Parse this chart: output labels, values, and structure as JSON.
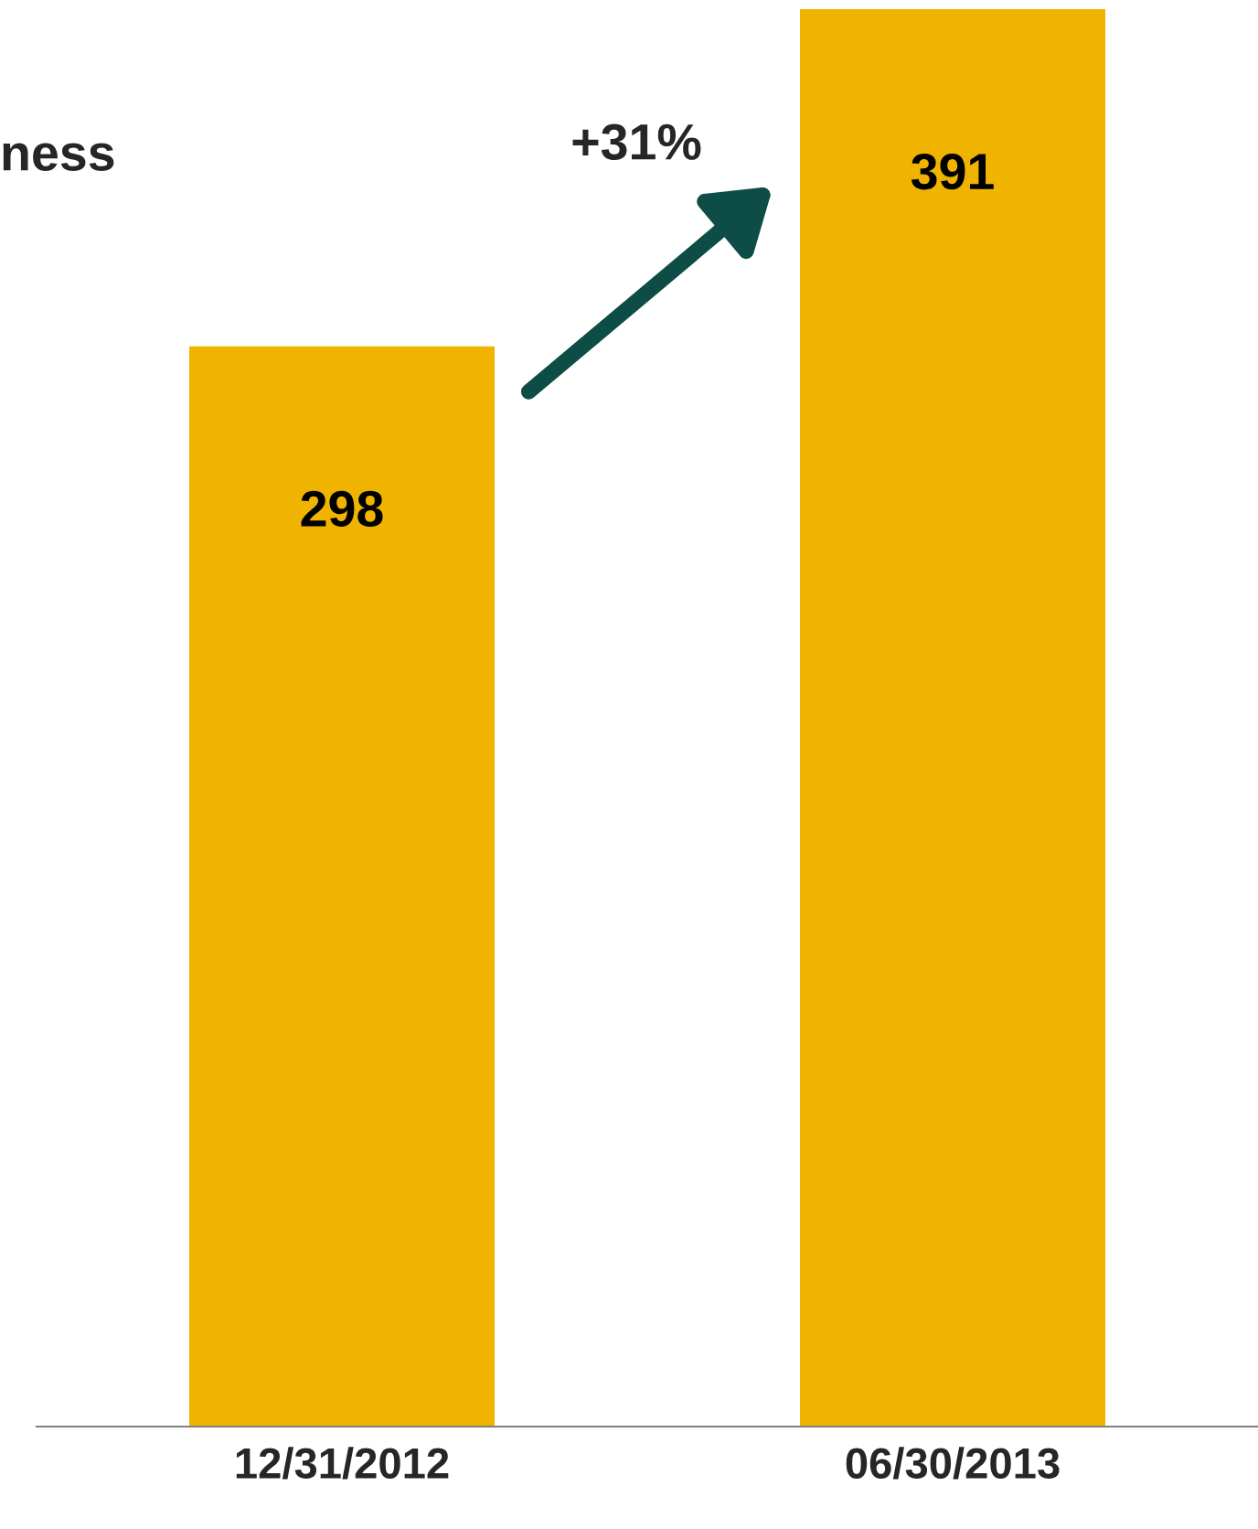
{
  "chart_data": {
    "type": "bar",
    "categories": [
      "12/31/2012",
      "06/30/2013"
    ],
    "values": [
      298,
      391
    ],
    "color": "#f0b400",
    "data_labels": true,
    "grid": false,
    "legend": false,
    "annotations": [
      "ness",
      "+31%"
    ]
  }
}
